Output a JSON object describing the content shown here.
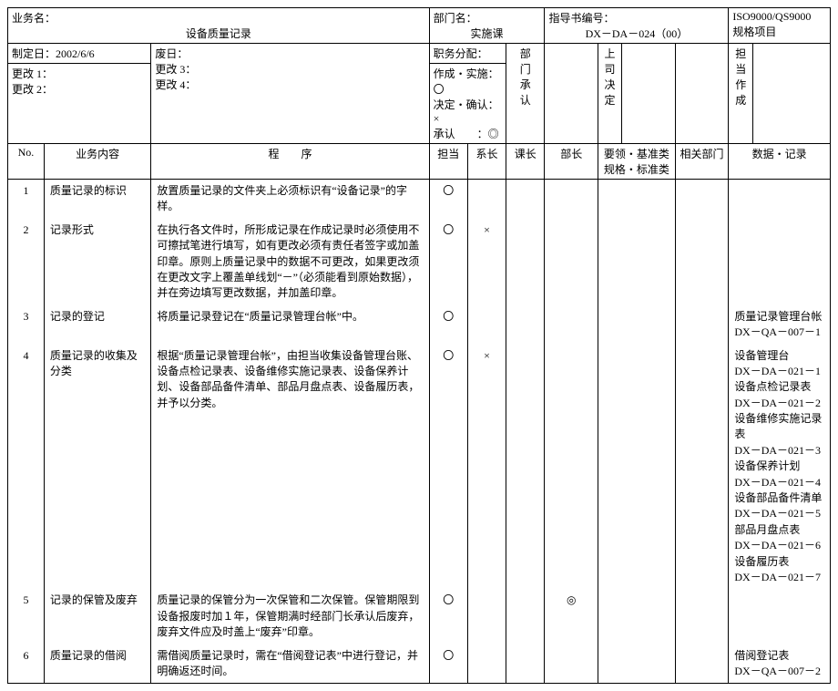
{
  "header": {
    "business_name_label": "业务名：",
    "business_name_value": "设备质量记录",
    "dept_label": "部门名：",
    "dept_value": "实施课",
    "guide_no_label": "指导书编号：",
    "guide_no_value": "DX－DA－024（00）",
    "spec_label": "ISO9000/QS9000\n规格项目"
  },
  "meta": {
    "make_date_label": "制定日：",
    "make_date_value": "2002/6/6",
    "discard_date_label": "废日：",
    "change1": "更改 1：",
    "change2": "更改 2：",
    "change3": "更改 3：",
    "change4": "更改 4：",
    "duty_label": "职务分配：",
    "line1": "作成・实施：〇",
    "line2": "决定・确认：×",
    "line3": "承认　　：◎",
    "dept_approve": "部\n门\n承\n认",
    "boss_decide": "上\n司\n决\n定",
    "owner_make": "担\n当\n作\n成"
  },
  "cols": {
    "no": "No.",
    "content": "业务内容",
    "procedure": "程　　序",
    "owner": "担当",
    "kacho": "系长",
    "kecho": "课长",
    "bucho": "部长",
    "criteria": "要领・基准类\n规格・标准类",
    "related": "相关部门",
    "data": "数据・记录"
  },
  "rows": [
    {
      "no": "1",
      "title": "质量记录的标识",
      "proc": "放置质量记录的文件夹上必须标识有“设备记录”的字样。",
      "owner": "〇",
      "kacho": "",
      "kecho": "",
      "bucho": "",
      "data": ""
    },
    {
      "no": "2",
      "title": "记录形式",
      "proc": "在执行各文件时，所形成记录在作成记录时必须使用不可擦拭笔进行填写，如有更改必须有责任者签字或加盖印章。原则上质量记录中的数据不可更改，如果更改须在更改文字上覆盖单线划“－”（必须能看到原始数据），并在旁边填写更改数据，并加盖印章。",
      "owner": "〇",
      "kacho": "×",
      "kecho": "",
      "bucho": "",
      "data": ""
    },
    {
      "no": "3",
      "title": "记录的登记",
      "proc": "将质量记录登记在“质量记录管理台帐”中。",
      "owner": "〇",
      "kacho": "",
      "kecho": "",
      "bucho": "",
      "data": "质量记录管理台帐\nDX－QA－007－1"
    },
    {
      "no": "4",
      "title": "质量记录的收集及分类",
      "proc": "根据“质量记录管理台帐”，由担当收集设备管理台账、设备点检记录表、设备维修实施记录表、设备保养计划、设备部品备件清单、部品月盘点表、设备履历表，并予以分类。",
      "owner": "〇",
      "kacho": "×",
      "kecho": "",
      "bucho": "",
      "data": "设备管理台\nDX－DA－021－1\n设备点检记录表\nDX－DA－021－2\n设备维修实施记录表\nDX－DA－021－3\n设备保养计划\nDX－DA－021－4\n设备部品备件清单\nDX－DA－021－5\n部品月盘点表\nDX－DA－021－6\n设备履历表\nDX－DA－021－7"
    },
    {
      "no": "5",
      "title": "记录的保管及废弃",
      "proc": "质量记录的保管分为一次保管和二次保管。保管期限到设备报废时加１年，保管期满时经部门长承认后废弃，废弃文件应及时盖上“废弃”印章。",
      "owner": "〇",
      "kacho": "",
      "kecho": "",
      "bucho": "◎",
      "data": ""
    },
    {
      "no": "6",
      "title": "质量记录的借阅",
      "proc": "需借阅质量记录时，需在“借阅登记表”中进行登记，并明确返还时间。",
      "owner": "〇",
      "kacho": "",
      "kecho": "",
      "bucho": "",
      "data": "借阅登记表\nDX－QA－007－2"
    }
  ]
}
